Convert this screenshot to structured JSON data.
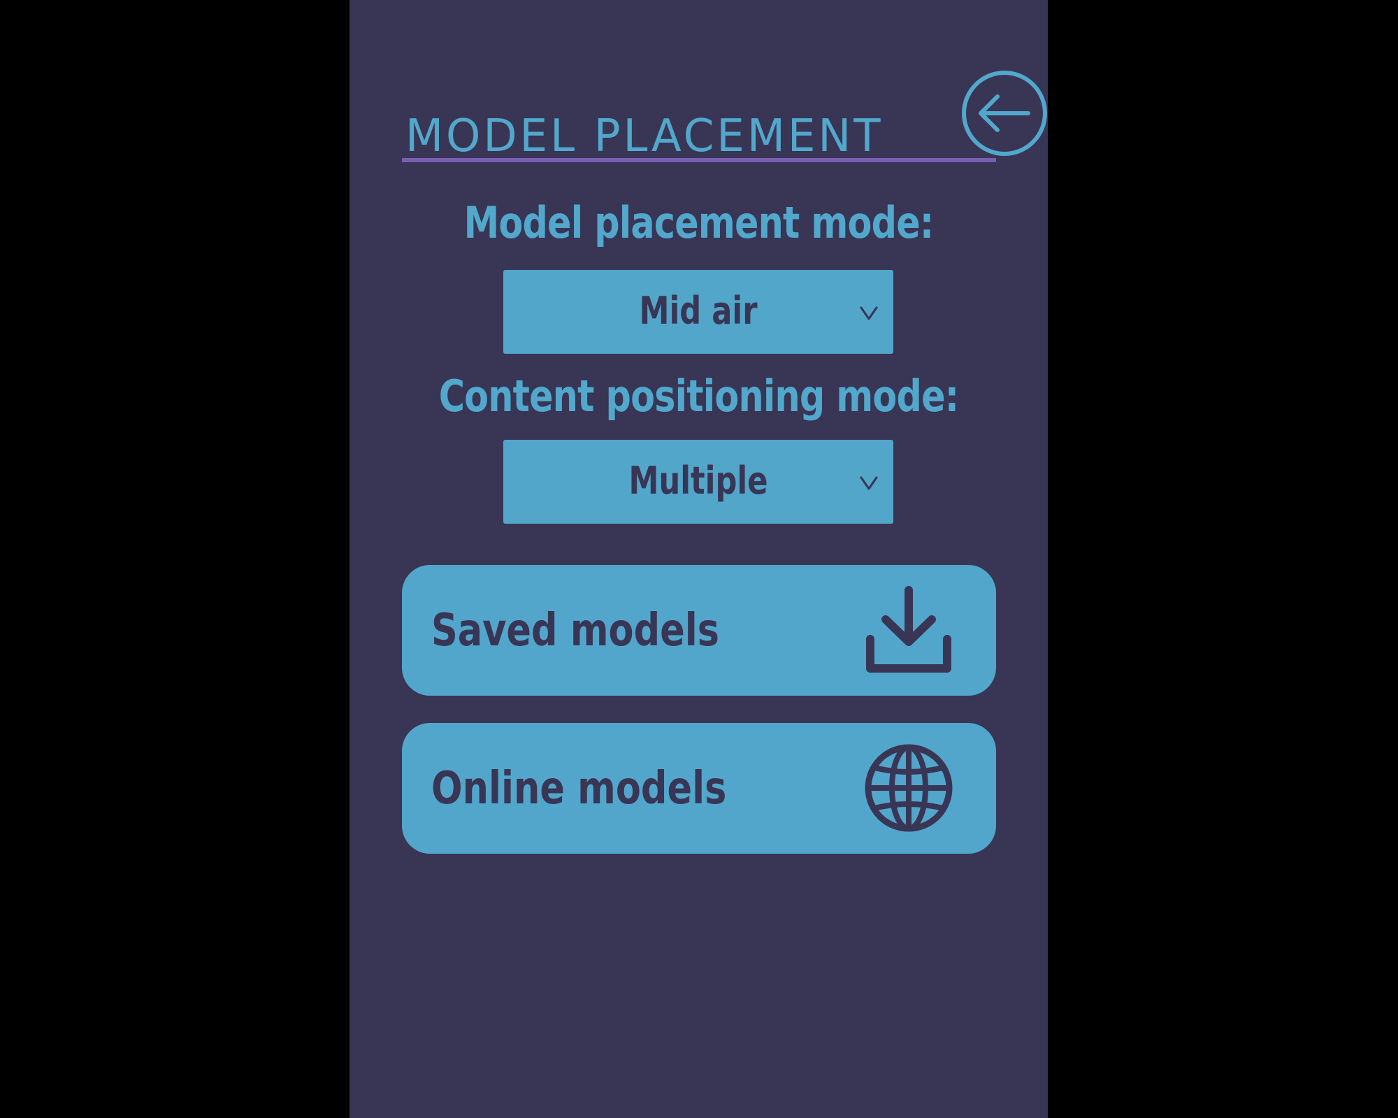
{
  "header": {
    "title": "MODEL PLACEMENT",
    "back_icon": "arrow-left-circle-icon"
  },
  "placement": {
    "label": "Model placement mode:",
    "value": "Mid air",
    "chevron_icon": "chevron-down-icon"
  },
  "positioning": {
    "label": "Content positioning mode:",
    "value": "Multiple",
    "chevron_icon": "chevron-down-icon"
  },
  "buttons": {
    "saved": {
      "label": "Saved models",
      "icon": "download-icon"
    },
    "online": {
      "label": "Online models",
      "icon": "globe-icon"
    }
  },
  "colors": {
    "background": "#393555",
    "outer": "#000000",
    "accent": "#52a8cc",
    "underline": "#7a5eb2",
    "dark_text": "#393555"
  }
}
